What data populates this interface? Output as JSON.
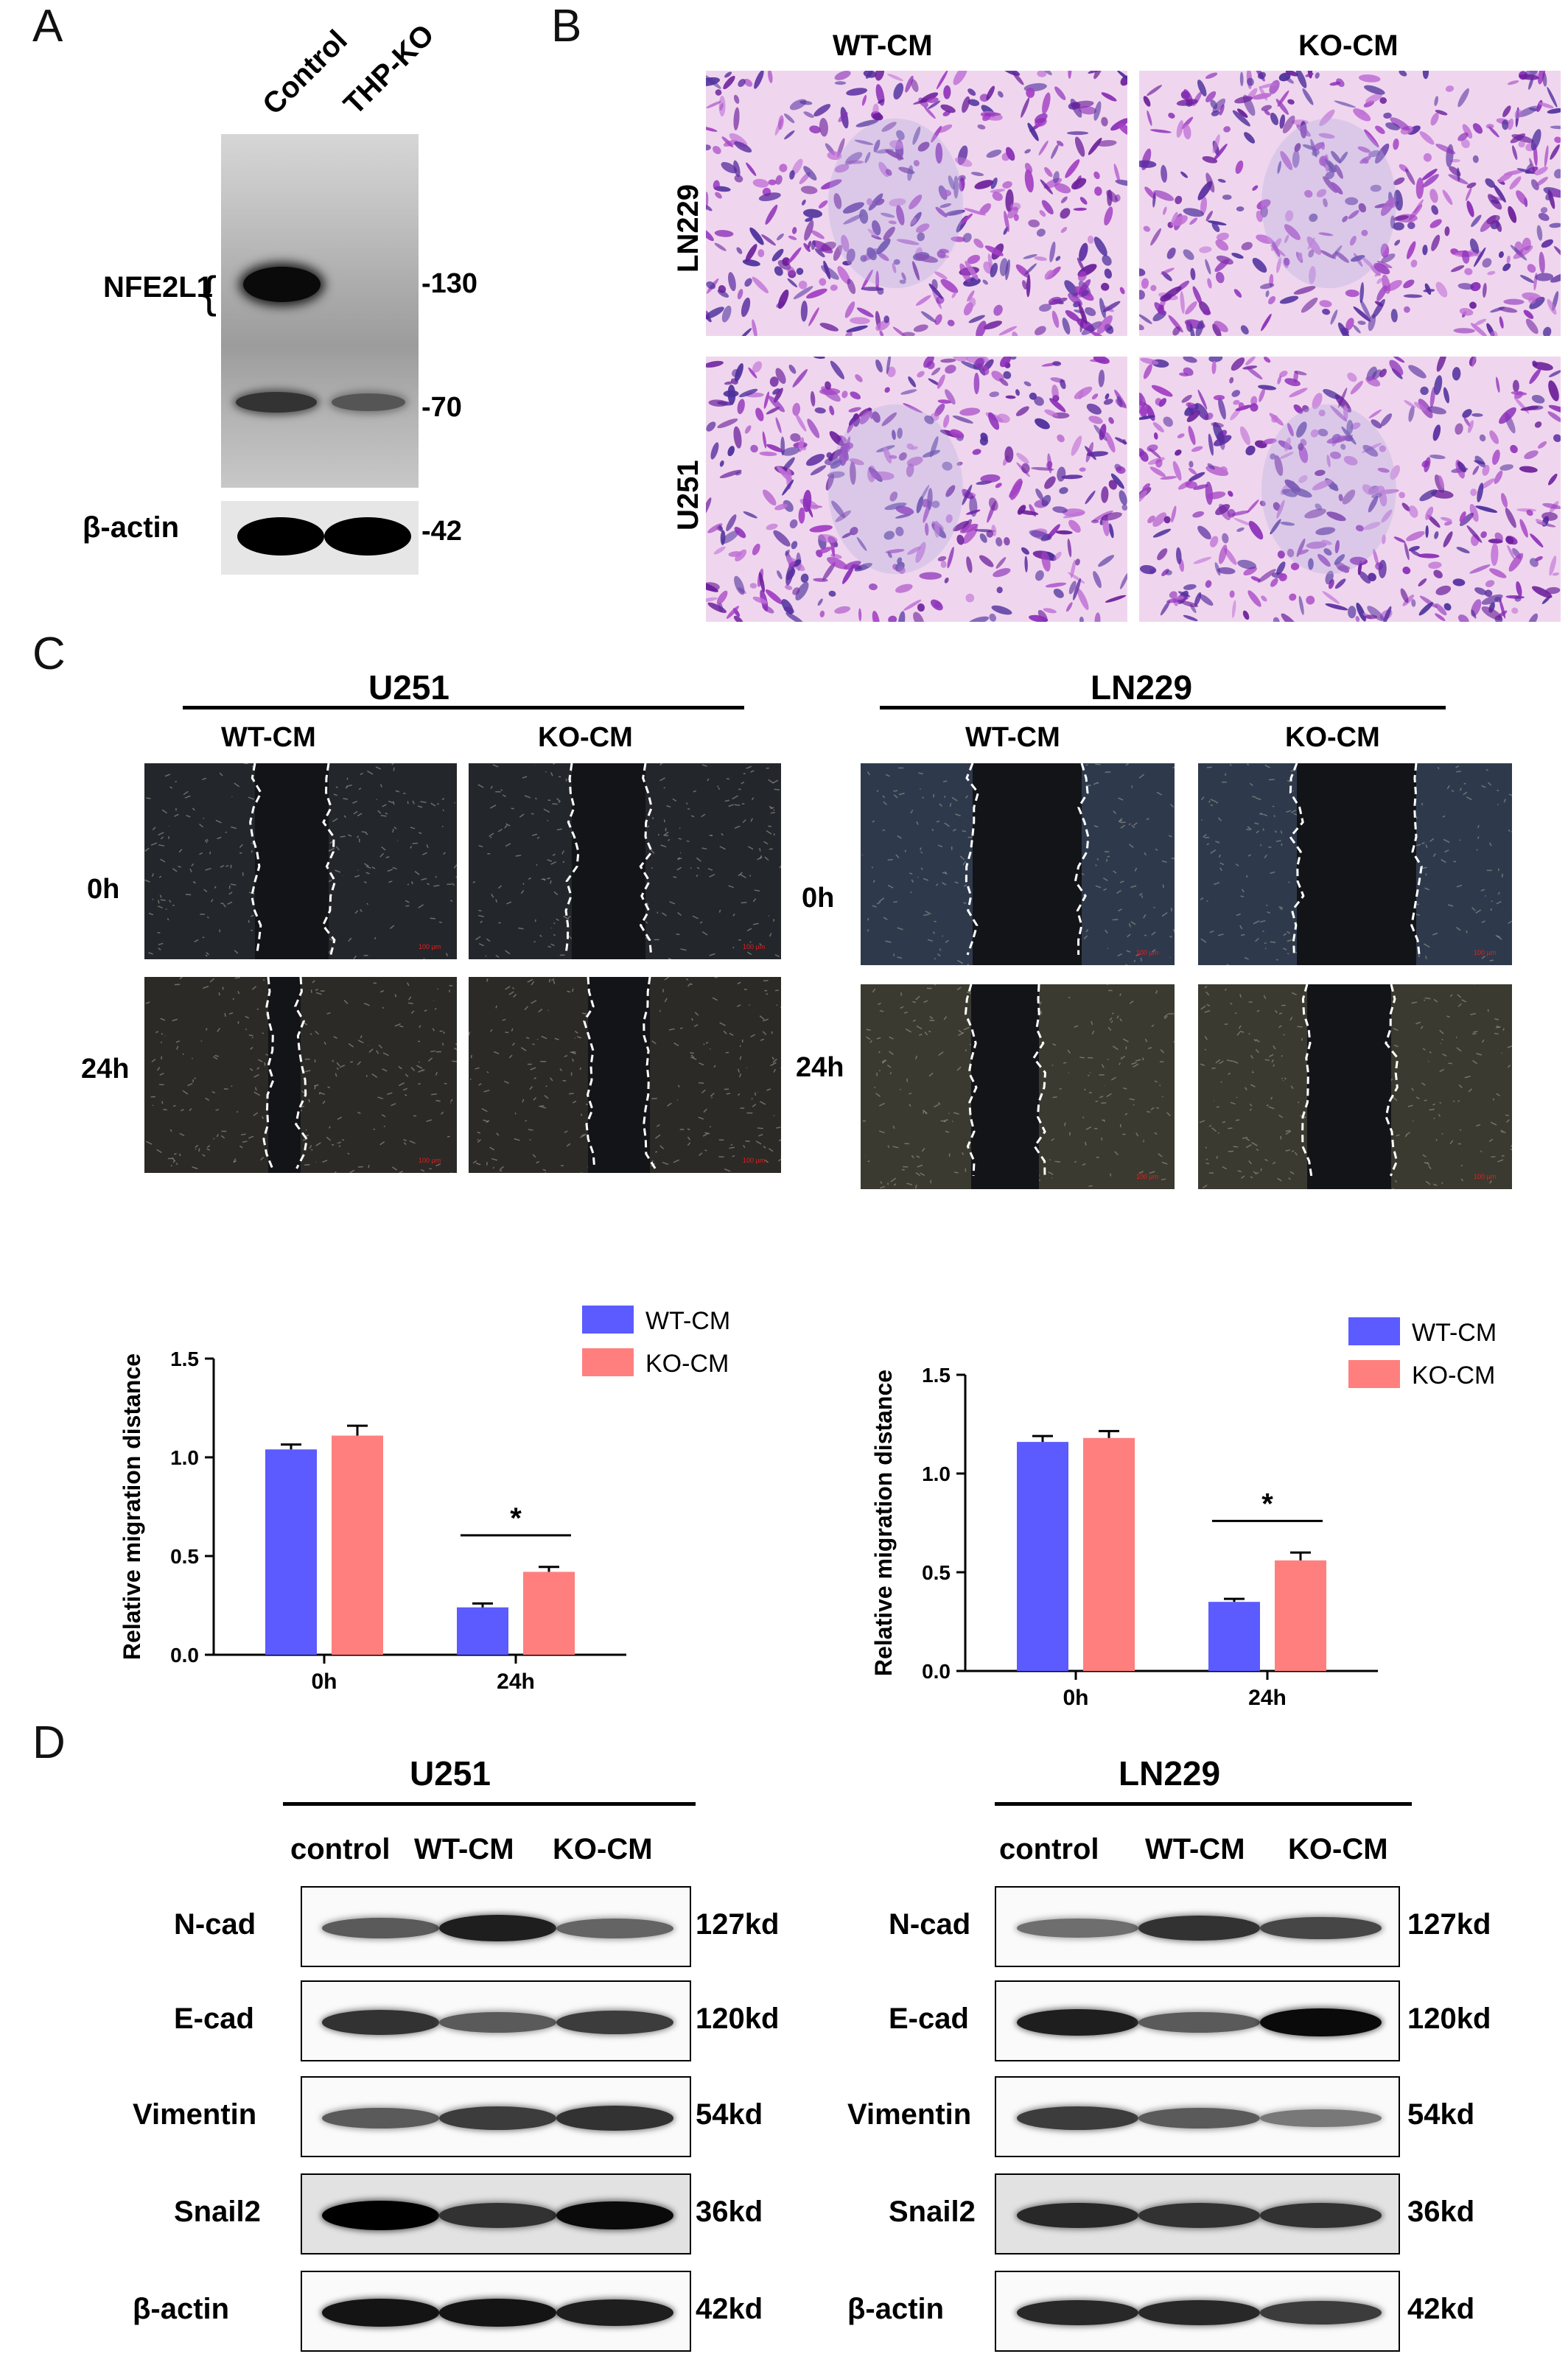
{
  "panels": {
    "A": {
      "letter": "A",
      "lanes": [
        "Control",
        "THP-KO"
      ],
      "protein_label": "NFE2L1",
      "brace": "{",
      "markers": [
        "-130",
        "-70"
      ],
      "actin_label": "β-actin",
      "actin_marker": "-42"
    },
    "B": {
      "letter": "B",
      "columns": [
        "WT-CM",
        "KO-CM"
      ],
      "rows": [
        "LN229",
        "U251"
      ]
    },
    "C": {
      "letter": "C",
      "left": {
        "cell": "U251",
        "columns": [
          "WT-CM",
          "KO-CM"
        ],
        "rows": [
          "0h",
          "24h"
        ]
      },
      "right": {
        "cell": "LN229",
        "columns": [
          "WT-CM",
          "KO-CM"
        ],
        "rows": [
          "0h",
          "24h"
        ]
      },
      "scale_text": "100 µm"
    },
    "D": {
      "letter": "D",
      "left": {
        "cell": "U251",
        "lanes": [
          "control",
          "WT-CM",
          "KO-CM"
        ]
      },
      "right": {
        "cell": "LN229",
        "lanes": [
          "control",
          "WT-CM",
          "KO-CM"
        ]
      },
      "proteins": [
        "N-cad",
        "E-cad",
        "Vimentin",
        "Snail2",
        "β-actin"
      ],
      "sizes": [
        "127kd",
        "120kd",
        "54kd",
        "36kd",
        "42kd"
      ],
      "left_intensity": [
        [
          0.55,
          0.85,
          0.5
        ],
        [
          0.75,
          0.55,
          0.7
        ],
        [
          0.55,
          0.7,
          0.75
        ],
        [
          1.0,
          0.75,
          0.95
        ],
        [
          0.9,
          0.9,
          0.85
        ]
      ],
      "right_intensity": [
        [
          0.45,
          0.75,
          0.65
        ],
        [
          0.85,
          0.55,
          0.95
        ],
        [
          0.7,
          0.55,
          0.4
        ],
        [
          0.8,
          0.75,
          0.75
        ],
        [
          0.8,
          0.8,
          0.7
        ]
      ]
    }
  },
  "chart_data": [
    {
      "type": "bar",
      "categories": [
        "0h",
        "24h"
      ],
      "series": [
        {
          "name": "WT-CM",
          "values": [
            1.04,
            0.24
          ],
          "errors": [
            0.025,
            0.02
          ]
        },
        {
          "name": "KO-CM",
          "values": [
            1.11,
            0.42
          ],
          "errors": [
            0.05,
            0.025
          ]
        }
      ],
      "colors": [
        "#5b5bff",
        "#ff7f7f"
      ],
      "ylabel": "Relative migration distance",
      "ylim": [
        0,
        1.5
      ],
      "yticks": [
        "0.0",
        "0.5",
        "1.0",
        "1.5"
      ],
      "legend": "top-right",
      "annotation": "*",
      "grid": false
    },
    {
      "type": "bar",
      "categories": [
        "0h",
        "24h"
      ],
      "series": [
        {
          "name": "WT-CM",
          "values": [
            1.16,
            0.35
          ],
          "errors": [
            0.03,
            0.015
          ]
        },
        {
          "name": "KO-CM",
          "values": [
            1.18,
            0.56
          ],
          "errors": [
            0.035,
            0.04
          ]
        }
      ],
      "colors": [
        "#5b5bff",
        "#ff7f7f"
      ],
      "ylabel": "Relative migration distance",
      "ylim": [
        0,
        1.5
      ],
      "yticks": [
        "0.0",
        "0.5",
        "1.0",
        "1.5"
      ],
      "legend": "top-right",
      "annotation": "*",
      "grid": false
    }
  ]
}
